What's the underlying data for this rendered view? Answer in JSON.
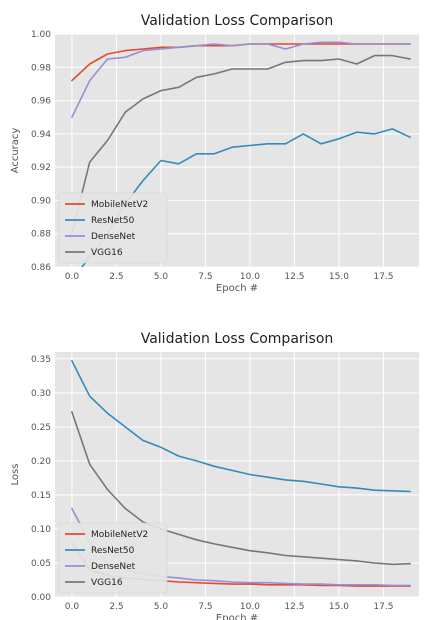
{
  "colors": {
    "plot_bg": "#e5e5e5",
    "grid": "#ffffff",
    "legend_bg": "#e5e5e5",
    "MobileNetV2": "#e24a33",
    "ResNet50": "#348abd",
    "DenseNet": "#988ed5",
    "VGG16": "#777777"
  },
  "chart_data": [
    {
      "type": "line",
      "title": "Validation Loss Comparison",
      "xlabel": "Epoch #",
      "ylabel": "Accuracy",
      "xlim": [
        -0.95,
        19.5
      ],
      "ylim": [
        0.86,
        1.0
      ],
      "xticks": [
        0.0,
        2.5,
        5.0,
        7.5,
        10.0,
        12.5,
        15.0,
        17.5
      ],
      "xtick_labels": [
        "0.0",
        "2.5",
        "5.0",
        "7.5",
        "10.0",
        "12.5",
        "15.0",
        "17.5"
      ],
      "yticks": [
        0.86,
        0.88,
        0.9,
        0.92,
        0.94,
        0.96,
        0.98,
        1.0
      ],
      "ytick_labels": [
        "0.86",
        "0.88",
        "0.90",
        "0.92",
        "0.94",
        "0.96",
        "0.98",
        "1.00"
      ],
      "grid": true,
      "legend_position": "lower-left",
      "x": [
        0,
        1,
        2,
        3,
        4,
        5,
        6,
        7,
        8,
        9,
        10,
        11,
        12,
        13,
        14,
        15,
        16,
        17,
        18,
        19
      ],
      "series": [
        {
          "name": "MobileNetV2",
          "values": [
            0.972,
            0.982,
            0.988,
            0.99,
            0.991,
            0.992,
            0.992,
            0.993,
            0.993,
            0.993,
            0.994,
            0.994,
            0.994,
            0.994,
            0.994,
            0.994,
            0.994,
            0.994,
            0.994,
            0.994
          ]
        },
        {
          "name": "ResNet50",
          "values": [
            0.852,
            0.866,
            0.88,
            0.898,
            0.912,
            0.924,
            0.922,
            0.928,
            0.928,
            0.932,
            0.933,
            0.934,
            0.934,
            0.94,
            0.934,
            0.937,
            0.941,
            0.94,
            0.943,
            0.938
          ]
        },
        {
          "name": "DenseNet",
          "values": [
            0.95,
            0.972,
            0.985,
            0.986,
            0.99,
            0.991,
            0.992,
            0.993,
            0.994,
            0.993,
            0.994,
            0.994,
            0.991,
            0.994,
            0.995,
            0.995,
            0.994,
            0.994,
            0.994,
            0.994
          ]
        },
        {
          "name": "VGG16",
          "values": [
            0.88,
            0.923,
            0.936,
            0.953,
            0.961,
            0.966,
            0.968,
            0.974,
            0.976,
            0.979,
            0.979,
            0.979,
            0.983,
            0.984,
            0.984,
            0.985,
            0.982,
            0.987,
            0.987,
            0.985
          ]
        }
      ]
    },
    {
      "type": "line",
      "title": "Validation Loss Comparison",
      "xlabel": "Epoch #",
      "ylabel": "Loss",
      "xlim": [
        -0.95,
        19.5
      ],
      "ylim": [
        0.0,
        0.36
      ],
      "xticks": [
        0.0,
        2.5,
        5.0,
        7.5,
        10.0,
        12.5,
        15.0,
        17.5
      ],
      "xtick_labels": [
        "0.0",
        "2.5",
        "5.0",
        "7.5",
        "10.0",
        "12.5",
        "15.0",
        "17.5"
      ],
      "yticks": [
        0.0,
        0.05,
        0.1,
        0.15,
        0.2,
        0.25,
        0.3,
        0.35
      ],
      "ytick_labels": [
        "0.00",
        "0.05",
        "0.10",
        "0.15",
        "0.20",
        "0.25",
        "0.30",
        "0.35"
      ],
      "grid": true,
      "legend_position": "lower-left",
      "x": [
        0,
        1,
        2,
        3,
        4,
        5,
        6,
        7,
        8,
        9,
        10,
        11,
        12,
        13,
        14,
        15,
        16,
        17,
        18,
        19
      ],
      "series": [
        {
          "name": "MobileNetV2",
          "values": [
            0.08,
            0.04,
            0.032,
            0.028,
            0.026,
            0.024,
            0.022,
            0.021,
            0.02,
            0.019,
            0.019,
            0.018,
            0.018,
            0.018,
            0.017,
            0.017,
            0.016,
            0.016,
            0.016,
            0.016
          ]
        },
        {
          "name": "ResNet50",
          "values": [
            0.347,
            0.295,
            0.27,
            0.25,
            0.23,
            0.22,
            0.207,
            0.2,
            0.192,
            0.186,
            0.18,
            0.176,
            0.172,
            0.17,
            0.166,
            0.162,
            0.16,
            0.157,
            0.156,
            0.155
          ]
        },
        {
          "name": "DenseNet",
          "values": [
            0.13,
            0.08,
            0.05,
            0.04,
            0.035,
            0.03,
            0.028,
            0.025,
            0.024,
            0.022,
            0.021,
            0.021,
            0.02,
            0.019,
            0.019,
            0.018,
            0.018,
            0.018,
            0.017,
            0.017
          ]
        },
        {
          "name": "VGG16",
          "values": [
            0.272,
            0.195,
            0.158,
            0.13,
            0.11,
            0.1,
            0.092,
            0.084,
            0.078,
            0.073,
            0.068,
            0.065,
            0.061,
            0.059,
            0.057,
            0.055,
            0.053,
            0.05,
            0.048,
            0.049
          ]
        }
      ]
    }
  ]
}
